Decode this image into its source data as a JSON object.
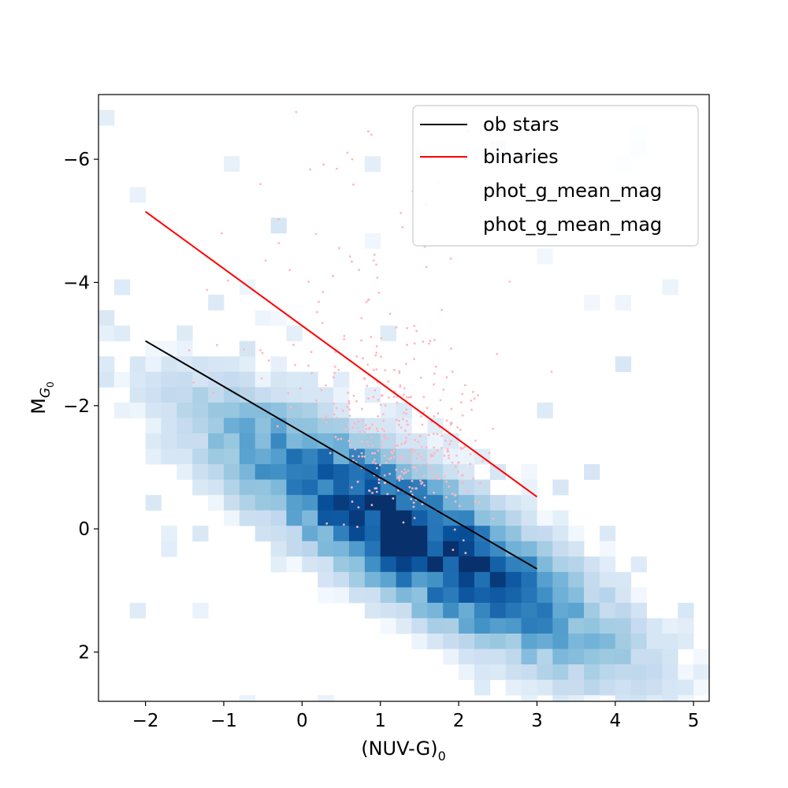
{
  "chart_data": {
    "type": "scatter",
    "title": "",
    "xlabel": "(NUV-G)",
    "xlabel_subscript": "0",
    "ylabel": "M",
    "ylabel_subscript": "G",
    "ylabel_subsubscript": "0",
    "xlim": [
      -2.6,
      5.2
    ],
    "ylim": [
      2.8,
      -7.05
    ],
    "y_inverted": true,
    "x_ticks": [
      -2,
      -1,
      0,
      1,
      2,
      3,
      4,
      5
    ],
    "x_tick_labels": [
      "−2",
      "−1",
      "0",
      "1",
      "2",
      "3",
      "4",
      "5"
    ],
    "y_ticks": [
      2,
      0,
      -2,
      -4,
      -6
    ],
    "y_tick_labels": [
      "2",
      "0",
      "−2",
      "−4",
      "−6"
    ],
    "grid": false,
    "legend_position": "top-right",
    "colors": {
      "ob_line": "#000000",
      "binaries_line": "#ff0000",
      "scatter_points": "#ffb6c1",
      "hist_colormap": "Blues",
      "hist_low": "#f7fbff",
      "hist_high": "#08306b"
    },
    "histogram2d": {
      "description_note": "",
      "x_bin_width": 0.2,
      "y_bin_width": 0.25,
      "x_range": [
        -2.6,
        5.2
      ],
      "y_range": [
        -6.8,
        2.8
      ]
    },
    "series": [
      {
        "name": "ob stars",
        "kind": "line",
        "x": [
          -2,
          3
        ],
        "y": [
          -3.05,
          0.65
        ]
      },
      {
        "name": "binaries",
        "kind": "line",
        "x": [
          -2,
          3
        ],
        "y": [
          -5.15,
          -0.52
        ]
      },
      {
        "name": "phot_g_mean_mag",
        "kind": "scatter_pink"
      },
      {
        "name": "phot_g_mean_mag",
        "kind": "hist2d"
      }
    ],
    "legend": [
      "ob stars",
      "binaries",
      "phot_g_mean_mag",
      "phot_g_mean_mag"
    ]
  }
}
